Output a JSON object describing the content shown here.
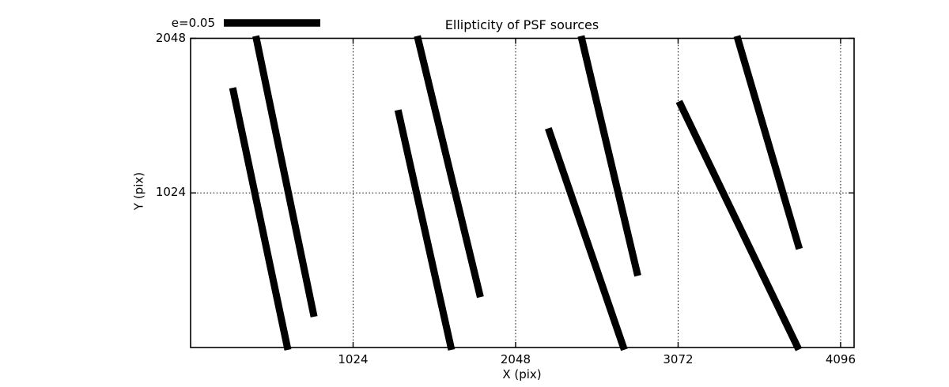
{
  "title": "Ellipticity of PSF sources",
  "chart_data": {
    "type": "whisker_segments",
    "title": "Ellipticity of PSF sources",
    "xlabel": "X (pix)",
    "ylabel": "Y (pix)",
    "xlim": [
      0,
      4181
    ],
    "ylim": [
      0,
      2048
    ],
    "xticks": [
      1024,
      2048,
      3072,
      4096
    ],
    "yticks": [
      1024,
      2048
    ],
    "grid": "dotted",
    "legend": {
      "label": "e=0.05",
      "bar_length_units": 608
    },
    "colors": {
      "line": "#000000",
      "background": "#ffffff"
    },
    "segments": [
      {
        "x1": 265,
        "y1": 1720,
        "x2": 610,
        "y2": 0
      },
      {
        "x1": 414,
        "y1": 2048,
        "x2": 778,
        "y2": 204
      },
      {
        "x1": 1307,
        "y1": 1573,
        "x2": 1641,
        "y2": 0
      },
      {
        "x1": 1432,
        "y1": 2048,
        "x2": 1826,
        "y2": 334
      },
      {
        "x1": 2254,
        "y1": 1452,
        "x2": 2728,
        "y2": 0
      },
      {
        "x1": 2464,
        "y1": 2048,
        "x2": 2818,
        "y2": 475
      },
      {
        "x1": 3078,
        "y1": 1630,
        "x2": 3826,
        "y2": 0
      },
      {
        "x1": 3447,
        "y1": 2048,
        "x2": 3836,
        "y2": 653
      }
    ]
  }
}
